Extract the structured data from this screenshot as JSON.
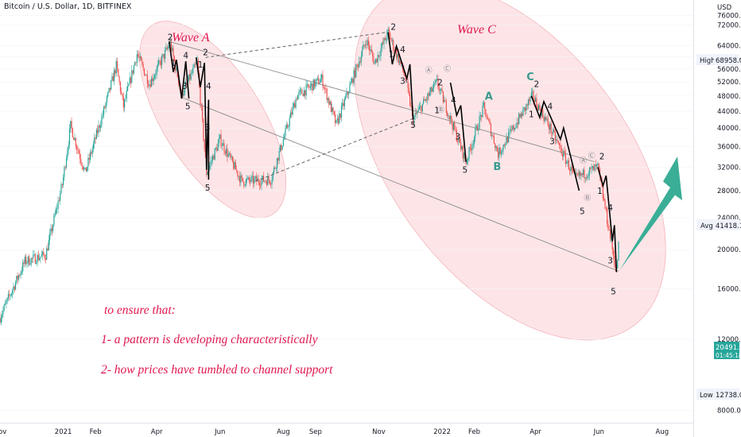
{
  "header": {
    "symbol_line": "Bitcoin / U.S. Dollar, 1D, BITFINEX"
  },
  "axis": {
    "currency": "USD"
  },
  "badges": {
    "high_label": "High",
    "high_value": "68958.0",
    "avg_label": "Avg",
    "avg_value": "41418.1",
    "low_label": "Low",
    "low_value": "12738.0",
    "last_value": "20491.0",
    "last_countdown": "01:45:18"
  },
  "annotations": {
    "wave_a": "Wave A",
    "wave_c": "Wave C",
    "note_line1": "to ensure that:",
    "note_line2": "1- a pattern is developing characteristically",
    "note_line3": "2- how prices have tumbled to channel support"
  },
  "colors": {
    "up": "#26a69a",
    "down": "#ef5350",
    "wave_lines": "#000000",
    "ellipse_fill": "#fbd3d7",
    "annotation_text": "#e0184f",
    "corrective_letters": "#3a9a8e",
    "projection_arrow": "#3aae96"
  },
  "chart_data": {
    "type": "candlestick",
    "title": "Bitcoin / U.S. Dollar, 1D, BITFINEX",
    "y_scale": "log",
    "y_unit": "USD",
    "ylim": [
      7600,
      80000
    ],
    "y_ticks": [
      8000,
      12000,
      16000,
      20000,
      24000,
      28000,
      32000,
      36000,
      40000,
      44000,
      48000,
      52000,
      56000,
      60000,
      64000,
      72000,
      76000
    ],
    "x_ticks": [
      "Nov",
      "2021",
      "Feb",
      "Apr",
      "Jun",
      "Aug",
      "Sep",
      "Nov",
      "2022",
      "Feb",
      "Apr",
      "Jun",
      "Aug"
    ],
    "x_tick_dates": [
      "2020-11-01",
      "2021-01-01",
      "2021-02-01",
      "2021-04-01",
      "2021-06-01",
      "2021-08-01",
      "2021-09-01",
      "2021-11-01",
      "2022-01-01",
      "2022-02-01",
      "2022-04-01",
      "2022-06-01",
      "2022-08-01"
    ],
    "x_range": [
      "2020-11-01",
      "2022-08-31"
    ],
    "price_path": [
      [
        "2020-11-01",
        13600
      ],
      [
        "2020-11-25",
        18700
      ],
      [
        "2020-12-15",
        19400
      ],
      [
        "2020-12-31",
        29000
      ],
      [
        "2021-01-08",
        40500
      ],
      [
        "2021-01-22",
        31000
      ],
      [
        "2021-02-10",
        45000
      ],
      [
        "2021-02-21",
        57000
      ],
      [
        "2021-02-28",
        45200
      ],
      [
        "2021-03-13",
        61000
      ],
      [
        "2021-03-25",
        51500
      ],
      [
        "2021-04-14",
        64800
      ],
      [
        "2021-04-25",
        48500
      ],
      [
        "2021-05-10",
        58000
      ],
      [
        "2021-05-19",
        31000
      ],
      [
        "2021-06-01",
        37500
      ],
      [
        "2021-06-22",
        29500
      ],
      [
        "2021-07-20",
        29800
      ],
      [
        "2021-08-14",
        48000
      ],
      [
        "2021-09-07",
        52900
      ],
      [
        "2021-09-21",
        40700
      ],
      [
        "2021-10-20",
        66000
      ],
      [
        "2021-10-28",
        58000
      ],
      [
        "2021-11-10",
        68958
      ],
      [
        "2021-11-26",
        54000
      ],
      [
        "2021-12-04",
        42000
      ],
      [
        "2021-12-27",
        51900
      ],
      [
        "2022-01-24",
        33000
      ],
      [
        "2022-02-10",
        45000
      ],
      [
        "2022-02-24",
        34500
      ],
      [
        "2022-03-29",
        48000
      ],
      [
        "2022-04-15",
        40000
      ],
      [
        "2022-05-09",
        30000
      ],
      [
        "2022-05-31",
        32000
      ],
      [
        "2022-06-18",
        17600
      ],
      [
        "2022-06-20",
        20491
      ]
    ],
    "wave_counts": [
      {
        "label": "2",
        "date": "2021-04-14",
        "price": 66000
      },
      {
        "label": "1",
        "date": "2021-04-17",
        "price": 57000
      },
      {
        "label": "4",
        "date": "2021-04-29",
        "price": 59500
      },
      {
        "label": "3",
        "date": "2021-04-28",
        "price": 50000
      },
      {
        "label": "5",
        "date": "2021-05-01",
        "price": 44500
      },
      {
        "label": "2",
        "date": "2021-05-18",
        "price": 60500
      },
      {
        "label": "1",
        "date": "2021-05-13",
        "price": 56500
      },
      {
        "label": "4",
        "date": "2021-05-21",
        "price": 50000
      },
      {
        "label": "3",
        "date": "2021-05-20",
        "price": 39500
      },
      {
        "label": "5",
        "date": "2021-05-20",
        "price": 28000
      },
      {
        "label": "2",
        "date": "2021-11-15",
        "price": 70000
      },
      {
        "label": "1",
        "date": "2021-11-13",
        "price": 60000
      },
      {
        "label": "4",
        "date": "2021-11-24",
        "price": 61500
      },
      {
        "label": "3",
        "date": "2021-11-24",
        "price": 51500
      },
      {
        "label": "5",
        "date": "2021-12-04",
        "price": 40000
      },
      {
        "label": "2",
        "date": "2021-12-30",
        "price": 51000
      },
      {
        "label": "4",
        "date": "2022-01-12",
        "price": 46000
      },
      {
        "label": "1",
        "date": "2021-12-27",
        "price": 43500
      },
      {
        "label": "3",
        "date": "2022-01-16",
        "price": 37500
      },
      {
        "label": "5",
        "date": "2022-01-23",
        "price": 31000
      },
      {
        "label": "2",
        "date": "2022-04-02",
        "price": 50500
      },
      {
        "label": "1",
        "date": "2022-03-28",
        "price": 42500
      },
      {
        "label": "4",
        "date": "2022-04-15",
        "price": 44500
      },
      {
        "label": "3",
        "date": "2022-04-17",
        "price": 36500
      },
      {
        "label": "5",
        "date": "2022-05-16",
        "price": 24500
      },
      {
        "label": "2",
        "date": "2022-06-04",
        "price": 33500
      },
      {
        "label": "1",
        "date": "2022-06-02",
        "price": 27500
      },
      {
        "label": "4",
        "date": "2022-06-12",
        "price": 25000
      },
      {
        "label": "3",
        "date": "2022-06-12",
        "price": 18500
      },
      {
        "label": "5",
        "date": "2022-06-15",
        "price": 15500
      }
    ],
    "corrective_labels": [
      {
        "label": "A",
        "date": "2022-02-15",
        "price": 47000
      },
      {
        "label": "B",
        "date": "2022-02-23",
        "price": 31500
      },
      {
        "label": "C",
        "date": "2022-03-27",
        "price": 52500
      },
      {
        "label": "Ⓐ",
        "date": "2021-12-19",
        "price": 54800
      },
      {
        "label": "Ⓑ",
        "date": "2021-12-31",
        "price": 43800
      },
      {
        "label": "Ⓒ",
        "date": "2022-01-06",
        "price": 55300
      },
      {
        "label": "Ⓐ",
        "date": "2022-05-17",
        "price": 32800
      },
      {
        "label": "Ⓑ",
        "date": "2022-05-21",
        "price": 26500
      },
      {
        "label": "Ⓒ",
        "date": "2022-05-25",
        "price": 33700
      }
    ],
    "channel_lines": [
      {
        "style": "solid",
        "from": [
          "2021-04-13",
          65500
        ],
        "to": [
          "2022-05-28",
          33000
        ]
      },
      {
        "style": "solid",
        "from": [
          "2021-04-28",
          47300
        ],
        "to": [
          "2022-06-20",
          17700
        ]
      },
      {
        "style": "dashed",
        "from": [
          "2021-05-18",
          59800
        ],
        "to": [
          "2021-11-08",
          69000
        ]
      },
      {
        "style": "dashed",
        "from": [
          "2021-07-05",
          29500
        ],
        "to": [
          "2021-12-04",
          42200
        ]
      }
    ]
  }
}
